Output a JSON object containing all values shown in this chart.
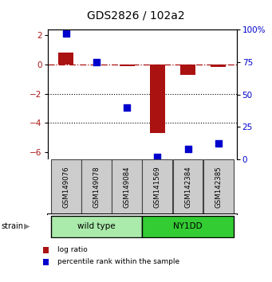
{
  "title": "GDS2826 / 102a2",
  "samples": [
    "GSM149076",
    "GSM149078",
    "GSM149084",
    "GSM141569",
    "GSM142384",
    "GSM142385"
  ],
  "log_ratio": [
    0.82,
    0.0,
    -0.12,
    -4.72,
    -0.72,
    -0.15
  ],
  "percentile": [
    97,
    75,
    40,
    2,
    8,
    12
  ],
  "groups": [
    {
      "label": "wild type",
      "start": 0,
      "end": 3,
      "color": "#AAEAAA"
    },
    {
      "label": "NY1DD",
      "start": 3,
      "end": 6,
      "color": "#33CC33"
    }
  ],
  "bar_color": "#AA1111",
  "dot_color": "#0000CC",
  "ylim_left": [
    -6.5,
    2.4
  ],
  "ylim_right": [
    0,
    100
  ],
  "yticks_left": [
    2,
    0,
    -2,
    -4,
    -6
  ],
  "yticks_right": [
    100,
    75,
    50,
    25,
    0
  ],
  "dotted_lines": [
    -2,
    -4
  ],
  "bar_width": 0.5,
  "dot_size": 28,
  "background_color": "#ffffff",
  "title_fontsize": 10,
  "tick_fontsize": 7.5,
  "sample_box_color": "#CCCCCC",
  "sample_box_edge": "#444444",
  "legend_items": [
    {
      "label": "log ratio",
      "color": "#AA1111"
    },
    {
      "label": "percentile rank within the sample",
      "color": "#0000CC"
    }
  ],
  "strain_label": "strain"
}
